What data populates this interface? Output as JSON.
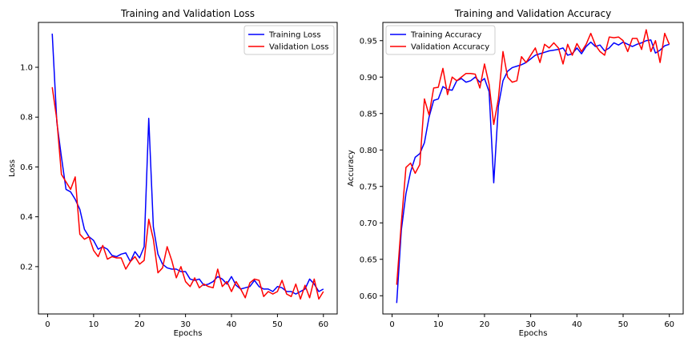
{
  "figure": {
    "background": "#ffffff"
  },
  "chart_data": [
    {
      "type": "line",
      "title": "Training and Validation Loss",
      "xlabel": "Epochs",
      "ylabel": "Loss",
      "xlim": [
        -2,
        63
      ],
      "ylim": [
        0.01,
        1.18
      ],
      "xticks": [
        0,
        10,
        20,
        30,
        40,
        50,
        60
      ],
      "yticks": [
        0.2,
        0.4,
        0.6,
        0.8,
        1.0
      ],
      "ytick_labels": [
        "0.2",
        "0.4",
        "0.6",
        "0.8",
        "1.0"
      ],
      "legend_position": "upper right",
      "grid": false,
      "x": [
        1,
        2,
        3,
        4,
        5,
        6,
        7,
        8,
        9,
        10,
        11,
        12,
        13,
        14,
        15,
        16,
        17,
        18,
        19,
        20,
        21,
        22,
        23,
        24,
        25,
        26,
        27,
        28,
        29,
        30,
        31,
        32,
        33,
        34,
        35,
        36,
        37,
        38,
        39,
        40,
        41,
        42,
        43,
        44,
        45,
        46,
        47,
        48,
        49,
        50,
        51,
        52,
        53,
        54,
        55,
        56,
        57,
        58,
        59,
        60
      ],
      "series": [
        {
          "name": "Training Loss",
          "color": "#0000ff",
          "values": [
            1.135,
            0.78,
            0.64,
            0.51,
            0.5,
            0.47,
            0.43,
            0.35,
            0.32,
            0.305,
            0.27,
            0.28,
            0.27,
            0.245,
            0.24,
            0.25,
            0.255,
            0.22,
            0.26,
            0.235,
            0.28,
            0.795,
            0.36,
            0.25,
            0.21,
            0.195,
            0.19,
            0.19,
            0.18,
            0.18,
            0.15,
            0.145,
            0.15,
            0.125,
            0.13,
            0.14,
            0.16,
            0.15,
            0.13,
            0.16,
            0.125,
            0.11,
            0.115,
            0.12,
            0.145,
            0.12,
            0.11,
            0.11,
            0.1,
            0.12,
            0.115,
            0.1,
            0.1,
            0.09,
            0.1,
            0.11,
            0.15,
            0.13,
            0.1,
            0.11
          ]
        },
        {
          "name": "Validation Loss",
          "color": "#ff0000",
          "values": [
            0.92,
            0.79,
            0.57,
            0.54,
            0.51,
            0.56,
            0.33,
            0.31,
            0.32,
            0.265,
            0.24,
            0.285,
            0.23,
            0.24,
            0.235,
            0.235,
            0.19,
            0.22,
            0.24,
            0.21,
            0.225,
            0.39,
            0.31,
            0.175,
            0.195,
            0.28,
            0.225,
            0.155,
            0.2,
            0.14,
            0.12,
            0.155,
            0.115,
            0.13,
            0.12,
            0.115,
            0.19,
            0.12,
            0.14,
            0.1,
            0.14,
            0.11,
            0.075,
            0.135,
            0.15,
            0.145,
            0.08,
            0.1,
            0.09,
            0.1,
            0.145,
            0.09,
            0.08,
            0.13,
            0.07,
            0.125,
            0.075,
            0.15,
            0.07,
            0.1
          ]
        }
      ]
    },
    {
      "type": "line",
      "title": "Training and Validation Accuracy",
      "xlabel": "Epochs",
      "ylabel": "Accuracy",
      "xlim": [
        -2,
        63
      ],
      "ylim": [
        0.575,
        0.975
      ],
      "xticks": [
        0,
        10,
        20,
        30,
        40,
        50,
        60
      ],
      "yticks": [
        0.6,
        0.65,
        0.7,
        0.75,
        0.8,
        0.85,
        0.9,
        0.95
      ],
      "ytick_labels": [
        "0.60",
        "0.65",
        "0.70",
        "0.75",
        "0.80",
        "0.85",
        "0.90",
        "0.95"
      ],
      "legend_position": "upper left",
      "grid": false,
      "x": [
        1,
        2,
        3,
        4,
        5,
        6,
        7,
        8,
        9,
        10,
        11,
        12,
        13,
        14,
        15,
        16,
        17,
        18,
        19,
        20,
        21,
        22,
        23,
        24,
        25,
        26,
        27,
        28,
        29,
        30,
        31,
        32,
        33,
        34,
        35,
        36,
        37,
        38,
        39,
        40,
        41,
        42,
        43,
        44,
        45,
        46,
        47,
        48,
        49,
        50,
        51,
        52,
        53,
        54,
        55,
        56,
        57,
        58,
        59,
        60
      ],
      "series": [
        {
          "name": "Training Accuracy",
          "color": "#0000ff",
          "values": [
            0.59,
            0.69,
            0.74,
            0.77,
            0.79,
            0.795,
            0.81,
            0.845,
            0.868,
            0.87,
            0.887,
            0.883,
            0.882,
            0.895,
            0.898,
            0.893,
            0.895,
            0.9,
            0.893,
            0.898,
            0.88,
            0.755,
            0.86,
            0.895,
            0.908,
            0.913,
            0.915,
            0.917,
            0.92,
            0.925,
            0.93,
            0.932,
            0.934,
            0.936,
            0.937,
            0.938,
            0.94,
            0.93,
            0.932,
            0.94,
            0.932,
            0.942,
            0.948,
            0.942,
            0.944,
            0.936,
            0.94,
            0.947,
            0.944,
            0.948,
            0.945,
            0.942,
            0.945,
            0.947,
            0.95,
            0.951,
            0.933,
            0.937,
            0.943,
            0.945
          ]
        },
        {
          "name": "Validation Accuracy",
          "color": "#ff0000",
          "values": [
            0.615,
            0.7,
            0.776,
            0.782,
            0.768,
            0.78,
            0.87,
            0.848,
            0.885,
            0.886,
            0.912,
            0.876,
            0.9,
            0.895,
            0.9,
            0.905,
            0.905,
            0.904,
            0.885,
            0.918,
            0.89,
            0.835,
            0.87,
            0.935,
            0.9,
            0.893,
            0.895,
            0.928,
            0.92,
            0.93,
            0.94,
            0.92,
            0.945,
            0.94,
            0.947,
            0.94,
            0.918,
            0.945,
            0.93,
            0.946,
            0.935,
            0.945,
            0.96,
            0.944,
            0.935,
            0.93,
            0.955,
            0.954,
            0.955,
            0.95,
            0.935,
            0.953,
            0.953,
            0.938,
            0.965,
            0.935,
            0.95,
            0.92,
            0.96,
            0.945
          ]
        }
      ]
    }
  ]
}
